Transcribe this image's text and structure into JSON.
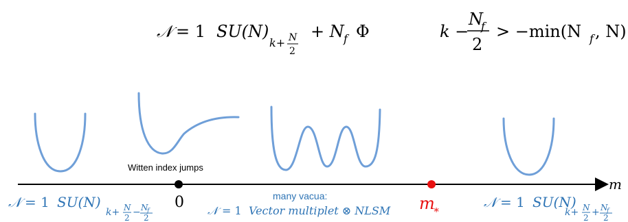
{
  "header": {
    "theory": {
      "calN": "𝒩",
      "eq_one": "= 1",
      "gauge": "SU(N)",
      "cs_sub_k": "k+",
      "cs_sub_N": "N",
      "cs_sub_2": "2",
      "plus": "+ N",
      "f": "f",
      "field": "Φ"
    },
    "condition": {
      "k": "k −",
      "frac_num": "N",
      "frac_num_sub": "f",
      "frac_den": "2",
      "rhs": "> −min(N",
      "rhs_sub": "f",
      "rhs_end": ", N)"
    }
  },
  "axis": {
    "var": "m",
    "zero": "0",
    "mstar": "m",
    "mstar_sub": "∗",
    "witten": "Witten index jumps"
  },
  "regions": {
    "left": {
      "calN": "𝒩",
      "eq": "= 1",
      "gauge": "SU(N)",
      "sub_k": "k+",
      "sub_N": "N",
      "sub_2a": "2",
      "sub_minus": "−",
      "sub_Nf": "N",
      "sub_f": "f",
      "sub_2b": "2"
    },
    "middle": {
      "label": "many vacua:",
      "calN": "𝒩",
      "eq": "= 1",
      "text": "Vector multiplet ⊗ NLSM"
    },
    "right": {
      "calN": "𝒩",
      "eq": "= 1",
      "gauge": "SU(N)",
      "sub_k": "k+",
      "sub_N": "N",
      "sub_2a": "2",
      "sub_plus": "+",
      "sub_Nf": "N",
      "sub_f": "f",
      "sub_2b": "2"
    }
  },
  "colors": {
    "curve": "#6f9fd8",
    "label_blue": "#2e74b5",
    "red": "#e81010",
    "black": "#000000"
  }
}
